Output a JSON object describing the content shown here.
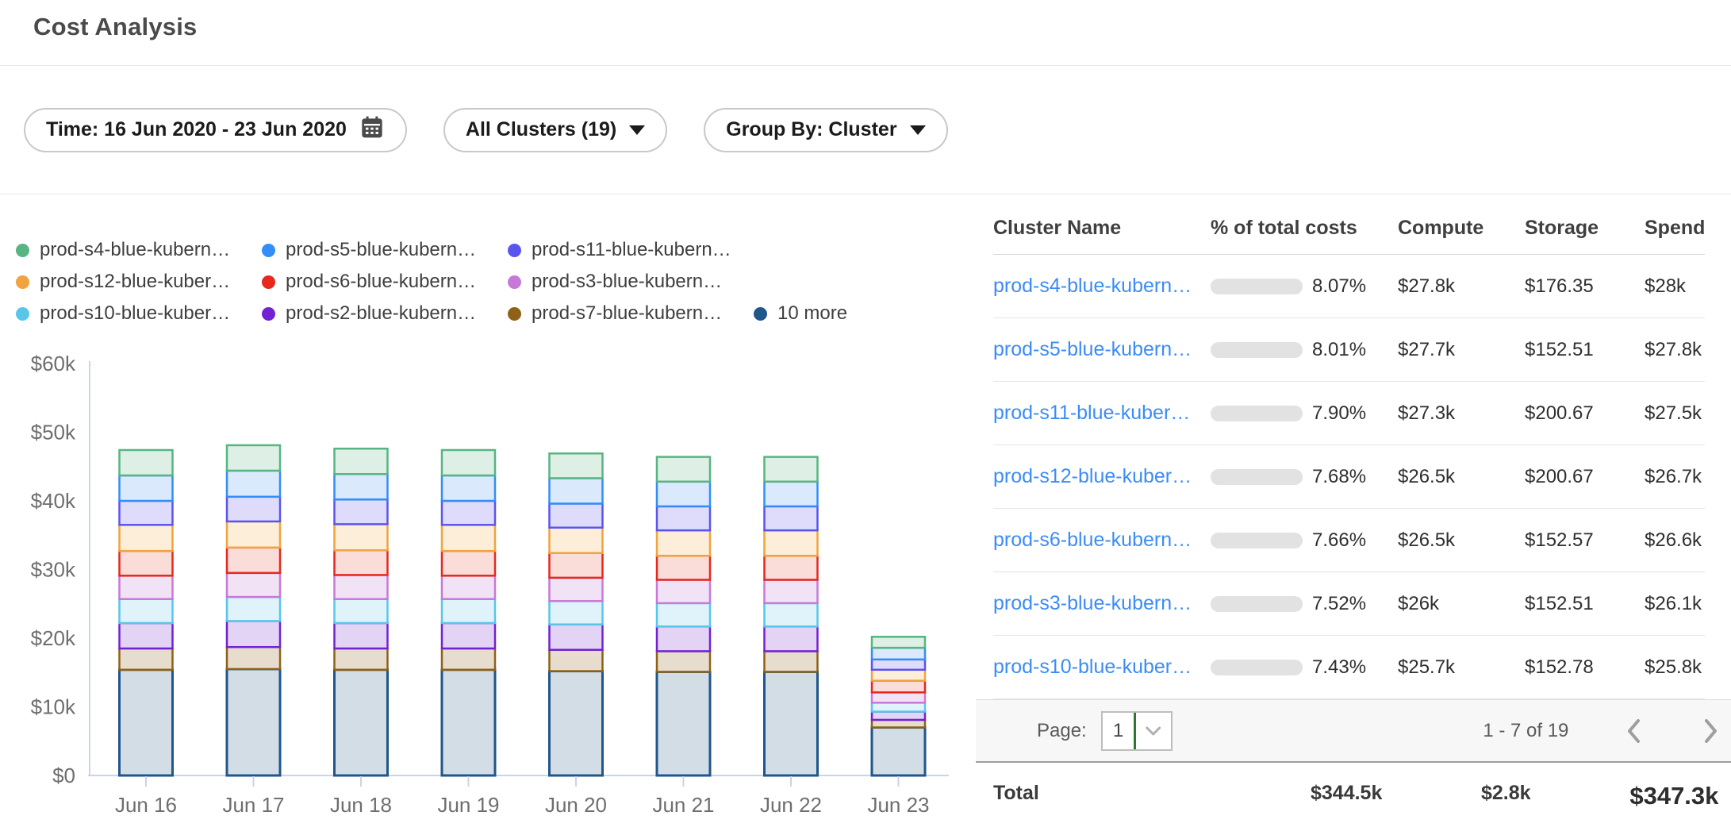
{
  "title": "Cost Analysis",
  "filters": {
    "time_label": "Time: 16 Jun 2020 - 23 Jun 2020",
    "clusters_label": "All Clusters (19)",
    "group_by_label": "Group By: Cluster"
  },
  "ui_colors": {
    "link": "#3b8cf7",
    "progress_fill": "#377df5",
    "progress_track": "#e2e2e2",
    "axis": "#c9d4ea",
    "select_caret_green": "#2d7a2d",
    "pager_chevron": "#9e9e9e"
  },
  "chart_data": {
    "type": "bar",
    "stacked": true,
    "title": "",
    "xlabel": "",
    "ylabel": "",
    "unit": "k USD",
    "ylim": [
      0,
      60
    ],
    "y_ticks": [
      "$0",
      "$10k",
      "$20k",
      "$30k",
      "$40k",
      "$50k",
      "$60k"
    ],
    "x": [
      "Jun 16",
      "Jun 17",
      "Jun 18",
      "Jun 19",
      "Jun 20",
      "Jun 21",
      "Jun 22",
      "Jun 23"
    ],
    "legend_note": "series listed top-to-bottom of stack; last series renders at stack bottom",
    "series": [
      {
        "name": "prod-s4-blue-kubern…",
        "color": "#57b583",
        "fill": "#def0e6",
        "values": [
          3.7,
          3.7,
          3.7,
          3.7,
          3.6,
          3.6,
          3.6,
          1.6
        ]
      },
      {
        "name": "prod-s5-blue-kubern…",
        "color": "#338ef7",
        "fill": "#dbe9fd",
        "values": [
          3.7,
          3.8,
          3.7,
          3.7,
          3.7,
          3.6,
          3.6,
          1.7
        ]
      },
      {
        "name": "prod-s11-blue-kubern…",
        "color": "#5a54f0",
        "fill": "#dedcfa",
        "values": [
          3.5,
          3.6,
          3.6,
          3.5,
          3.5,
          3.5,
          3.5,
          1.5
        ]
      },
      {
        "name": "prod-s12-blue-kuber…",
        "color": "#f0a33f",
        "fill": "#fdeeda",
        "values": [
          3.8,
          3.8,
          3.8,
          3.8,
          3.7,
          3.7,
          3.7,
          1.6
        ]
      },
      {
        "name": "prod-s6-blue-kubern…",
        "color": "#e6281e",
        "fill": "#fadcd9",
        "values": [
          3.6,
          3.7,
          3.6,
          3.6,
          3.6,
          3.5,
          3.5,
          1.7
        ]
      },
      {
        "name": "prod-s3-blue-kubern…",
        "color": "#c779d9",
        "fill": "#f2e2f6",
        "values": [
          3.4,
          3.5,
          3.5,
          3.4,
          3.4,
          3.4,
          3.4,
          1.5
        ]
      },
      {
        "name": "prod-s10-blue-kuber…",
        "color": "#58c6ea",
        "fill": "#e0f3fa",
        "values": [
          3.5,
          3.5,
          3.5,
          3.5,
          3.4,
          3.4,
          3.4,
          1.3
        ]
      },
      {
        "name": "prod-s2-blue-kubern…",
        "color": "#7322d3",
        "fill": "#e3d3f5",
        "values": [
          3.7,
          3.8,
          3.7,
          3.7,
          3.7,
          3.6,
          3.6,
          1.2
        ]
      },
      {
        "name": "prod-s7-blue-kubern…",
        "color": "#8f6118",
        "fill": "#e6ddcf",
        "values": [
          3.1,
          3.2,
          3.1,
          3.1,
          3.1,
          3.0,
          3.0,
          1.1
        ]
      },
      {
        "name": "10 more",
        "color": "#1f568c",
        "fill": "#d3dde6",
        "values": [
          15.4,
          15.5,
          15.4,
          15.4,
          15.2,
          15.1,
          15.1,
          7.0
        ]
      }
    ]
  },
  "table": {
    "columns": [
      "Cluster Name",
      "% of total costs",
      "Compute",
      "Storage",
      "Spend"
    ],
    "rows": [
      {
        "name": "prod-s4-blue-kubern…",
        "pct": "8.07%",
        "pct_value": 8.07,
        "compute": "$27.8k",
        "storage": "$176.35",
        "spend": "$28k"
      },
      {
        "name": "prod-s5-blue-kubern…",
        "pct": "8.01%",
        "pct_value": 8.01,
        "compute": "$27.7k",
        "storage": "$152.51",
        "spend": "$27.8k"
      },
      {
        "name": "prod-s11-blue-kuber…",
        "pct": "7.90%",
        "pct_value": 7.9,
        "compute": "$27.3k",
        "storage": "$200.67",
        "spend": "$27.5k"
      },
      {
        "name": "prod-s12-blue-kuber…",
        "pct": "7.68%",
        "pct_value": 7.68,
        "compute": "$26.5k",
        "storage": "$200.67",
        "spend": "$26.7k"
      },
      {
        "name": "prod-s6-blue-kubern…",
        "pct": "7.66%",
        "pct_value": 7.66,
        "compute": "$26.5k",
        "storage": "$152.57",
        "spend": "$26.6k"
      },
      {
        "name": "prod-s3-blue-kubern…",
        "pct": "7.52%",
        "pct_value": 7.52,
        "compute": "$26k",
        "storage": "$152.51",
        "spend": "$26.1k"
      },
      {
        "name": "prod-s10-blue-kuber…",
        "pct": "7.43%",
        "pct_value": 7.43,
        "compute": "$25.7k",
        "storage": "$152.78",
        "spend": "$25.8k"
      }
    ]
  },
  "pagination": {
    "label": "Page:",
    "current_page": "1",
    "range": "1 - 7 of 19"
  },
  "totals": {
    "label": "Total",
    "compute": "$344.5k",
    "storage": "$2.8k",
    "spend": "$347.3k"
  }
}
